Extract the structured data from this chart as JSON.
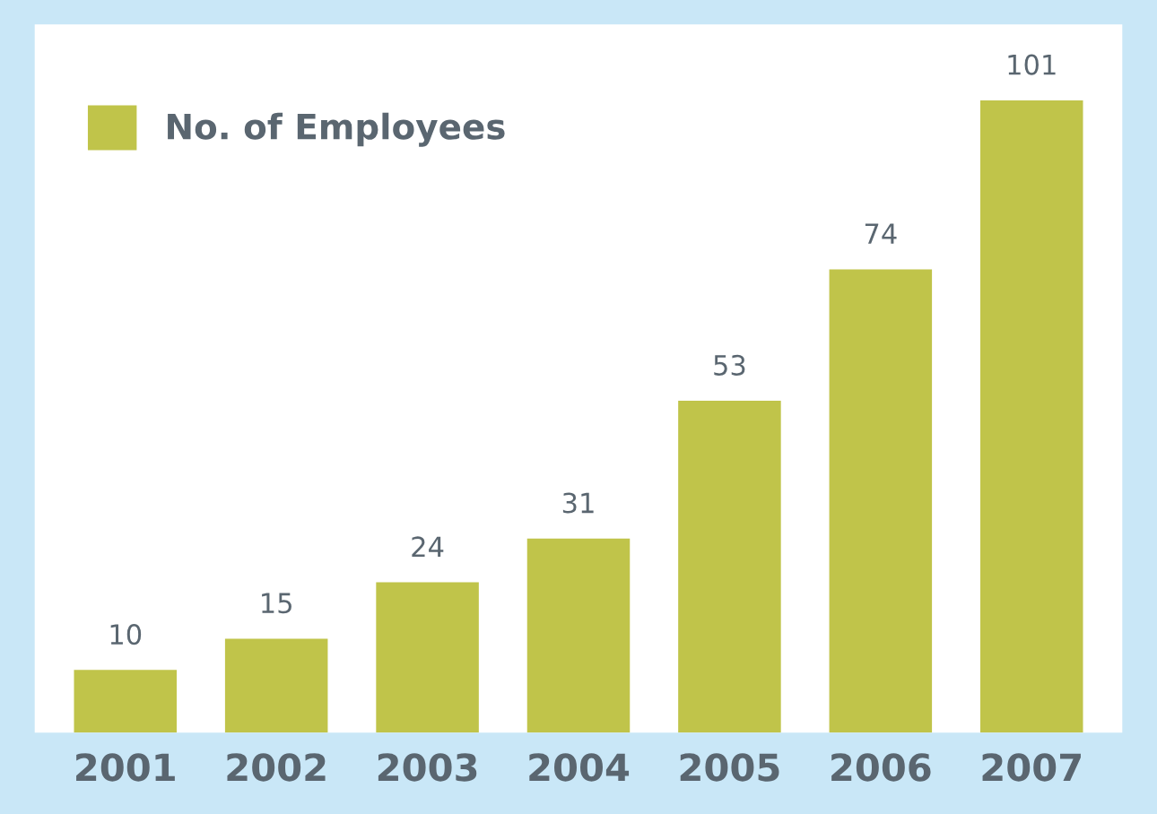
{
  "chart_data": {
    "type": "bar",
    "categories": [
      "2001",
      "2002",
      "2003",
      "2004",
      "2005",
      "2006",
      "2007"
    ],
    "series": [
      {
        "name": "No. of Employees",
        "color": "#c0c44a",
        "values": [
          10,
          15,
          24,
          31,
          53,
          74,
          101
        ]
      }
    ],
    "data_labels": true,
    "legend": "top left",
    "grid": false,
    "tick_labels": "x"
  }
}
